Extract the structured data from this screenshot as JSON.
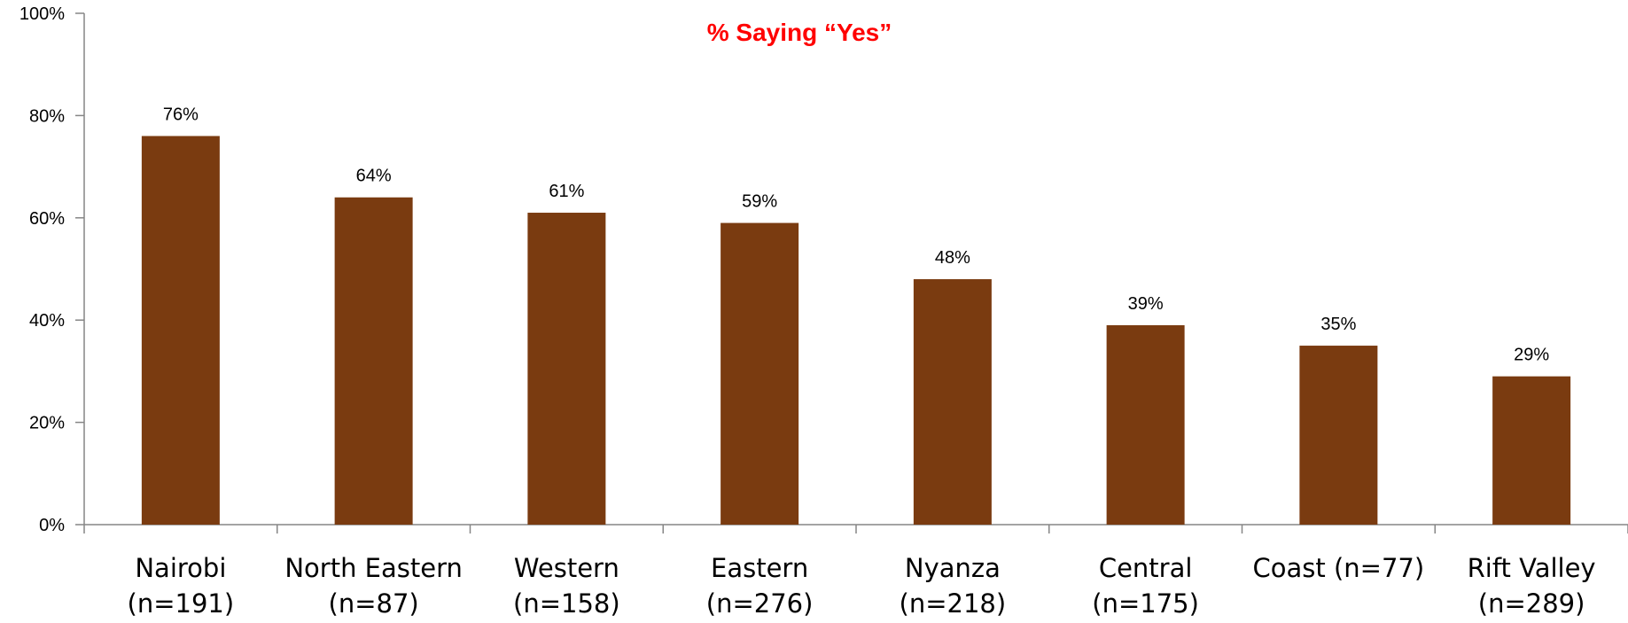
{
  "chart_data": {
    "type": "bar",
    "title": "% Saying “Yes”",
    "title_color": "#ff0000",
    "bar_color": "#7a3b10",
    "ylim": [
      0,
      100
    ],
    "yticks": [
      0,
      20,
      40,
      60,
      80,
      100
    ],
    "ytick_labels": [
      "0%",
      "20%",
      "40%",
      "60%",
      "80%",
      "100%"
    ],
    "categories": [
      [
        "Nairobi",
        "(n=191)"
      ],
      [
        "North Eastern",
        "(n=87)"
      ],
      [
        "Western",
        "(n=158)"
      ],
      [
        "Eastern",
        "(n=276)"
      ],
      [
        "Nyanza",
        "(n=218)"
      ],
      [
        "Central",
        "(n=175)"
      ],
      [
        "Coast (n=77)"
      ],
      [
        "Rift Valley",
        "(n=289)"
      ]
    ],
    "values": [
      76,
      64,
      61,
      59,
      48,
      39,
      35,
      29
    ],
    "value_labels": [
      "76%",
      "64%",
      "61%",
      "59%",
      "48%",
      "39%",
      "35%",
      "29%"
    ],
    "grid": false,
    "legend": "none"
  }
}
